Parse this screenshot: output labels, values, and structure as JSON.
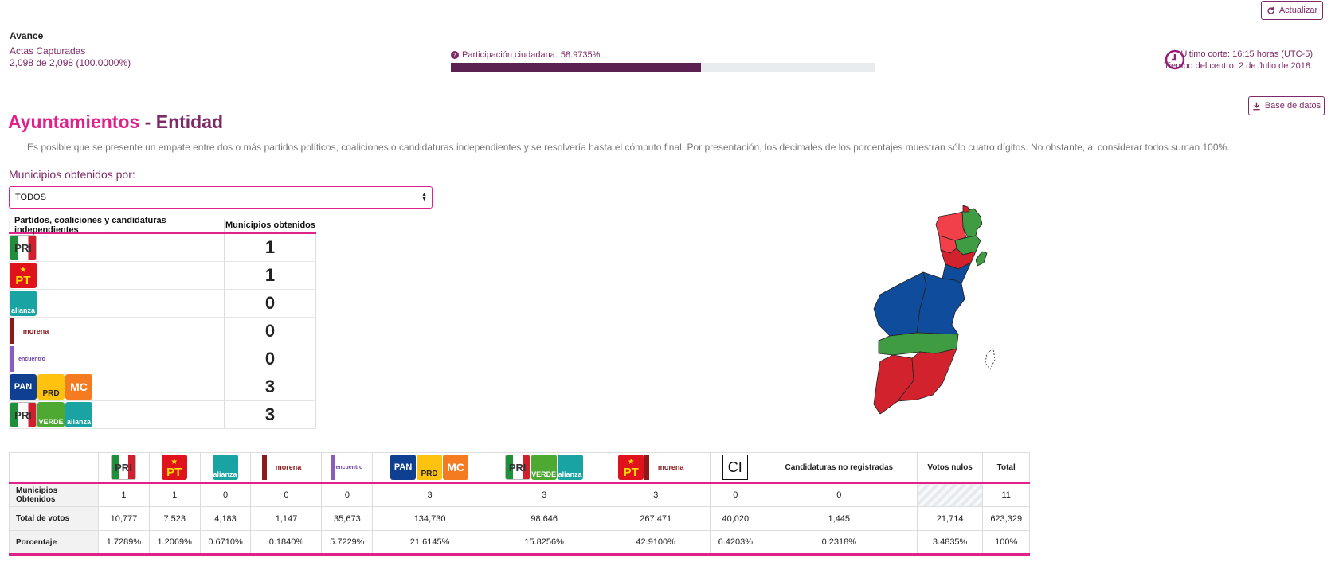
{
  "header": {
    "refresh_label": "Actualizar",
    "avance_title": "Avance",
    "actas_label": "Actas Capturadas",
    "actas_value": "2,098 de 2,098 (100.0000%)",
    "participacion_label": "Participación ciudadana:",
    "participacion_value": "58.9735%",
    "participacion_fraction": 0.589735,
    "corte_line1": "Último corte: 16:15 horas (UTC-5)",
    "corte_line2": "Tiempo del centro, 2 de Julio de 2018.",
    "database_label": "Base de datos"
  },
  "page": {
    "title_a": "Ayuntamientos",
    "title_sep": " - ",
    "title_b": "Entidad",
    "disclaimer": "Es posible que se presente un empate entre dos o más partidos políticos, coaliciones o candidaturas independientes y se resolvería hasta el cómputo final. Por presentación, los decimales de los porcentajes muestran sólo cuatro dígitos. No obstante, al considerar todos suman 100%."
  },
  "filter": {
    "label": "Municipios obtenidos por:",
    "selected": "TODOS"
  },
  "party_table": {
    "col1": "Partidos, coaliciones y candidaturas independientes",
    "col2": "Municipios obtenidos",
    "rows": [
      {
        "logos": [
          "pri"
        ],
        "value": "1"
      },
      {
        "logos": [
          "pt"
        ],
        "value": "1"
      },
      {
        "logos": [
          "pana"
        ],
        "value": "0"
      },
      {
        "logos": [
          "morena"
        ],
        "value": "0"
      },
      {
        "logos": [
          "pes"
        ],
        "value": "0"
      },
      {
        "logos": [
          "pan",
          "prd",
          "mc"
        ],
        "value": "3"
      },
      {
        "logos": [
          "pri",
          "verde",
          "pana"
        ],
        "value": "3"
      }
    ]
  },
  "logo_text": {
    "pri": "PRI",
    "pt": "PT",
    "pana": "alianza",
    "morena": "morena",
    "pes": "encuentro",
    "pan": "PAN",
    "prd": "PRD",
    "mc": "MC",
    "verde": "VERDE",
    "ci": "CI"
  },
  "summary_table": {
    "columns": [
      {
        "logos": [
          "pri"
        ]
      },
      {
        "logos": [
          "pt"
        ]
      },
      {
        "logos": [
          "pana"
        ]
      },
      {
        "logos": [
          "morena"
        ]
      },
      {
        "logos": [
          "pes"
        ]
      },
      {
        "logos": [
          "pan",
          "prd",
          "mc"
        ]
      },
      {
        "logos": [
          "pri",
          "verde",
          "pana"
        ]
      },
      {
        "logos": [
          "pt",
          "morena"
        ]
      },
      {
        "logos": [
          "ci"
        ]
      },
      {
        "label": "Candidaturas no registradas"
      },
      {
        "label": "Votos nulos"
      },
      {
        "label": "Total"
      }
    ],
    "rows": [
      {
        "label": "Municipios Obtenidos",
        "values": [
          "1",
          "1",
          "0",
          "0",
          "0",
          "3",
          "3",
          "3",
          "0",
          "0",
          "",
          "11"
        ]
      },
      {
        "label": "Total de votos",
        "values": [
          "10,777",
          "7,523",
          "4,183",
          "1,147",
          "35,673",
          "134,730",
          "98,646",
          "267,471",
          "40,020",
          "1,445",
          "21,714",
          "623,329"
        ]
      },
      {
        "label": "Porcentaje",
        "values": [
          "1.7289%",
          "1.2069%",
          "0.6710%",
          "0.1840%",
          "5.7229%",
          "21.6145%",
          "15.8256%",
          "42.9100%",
          "6.4203%",
          "0.2318%",
          "3.4835%",
          "100%"
        ]
      }
    ]
  },
  "colors": {
    "wine": "#7d2a66",
    "pink": "#e0218a",
    "progress": "#5b2151",
    "map_blue": "#0f4c9b",
    "map_green": "#3f9c43",
    "map_red": "#d2222d",
    "map_lightred": "#f2404a"
  },
  "icons": {
    "refresh": "refresh-icon",
    "download": "download-icon",
    "clock": "clock-icon",
    "question": "question-circle-icon"
  }
}
